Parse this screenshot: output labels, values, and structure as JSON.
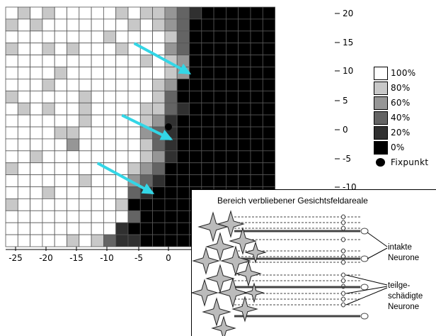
{
  "chart_data": {
    "type": "heatmap",
    "x_ticks": [
      "-25",
      "-20",
      "-15",
      "-10",
      "-5",
      "0"
    ],
    "y_ticks": [
      "20",
      "15",
      "10",
      "5",
      "0",
      "-5",
      "-10"
    ],
    "x_range": [
      -27,
      4
    ],
    "y_range": [
      -20,
      21
    ],
    "cell_size_deg": 2,
    "levels": [
      "100%",
      "80%",
      "60%",
      "40%",
      "20%",
      "0%"
    ],
    "level_colors": [
      "#ffffff",
      "#c8c8c8",
      "#969696",
      "#646464",
      "#303030",
      "#000000"
    ],
    "rows_note": "values are sensitivity level indices 0=100% .. 5=0%, top row first; x from -27 to 13 in 2° columns",
    "grid": [
      "0101000001011234555555",
      "1010000000101235555555",
      "0000000010000135555555",
      "1001010001000235555555",
      "0000000000010125555555",
      "0000100000000125555555",
      "0001000000001255555555",
      "1000001000001355555555",
      "0101001000011345555555",
      "0000001000012455555555",
      "0000110000023455555555",
      "0000020000013455555555",
      "0010000000012455555555",
      "1000000000123555555555",
      "0000001000234555555555",
      "0001000000345555555555",
      "1000000001555555555555",
      "0000000000355555555555",
      "0000000004555555555555",
      "0000010134455555555555"
    ],
    "fixation": {
      "x": 0,
      "y": 0,
      "label": "Fixpunkt"
    },
    "arrows": [
      {
        "from": [
          -6,
          14
        ],
        "to": [
          3,
          9
        ]
      },
      {
        "from": [
          -8,
          2
        ],
        "to": [
          0,
          -2
        ]
      },
      {
        "from": [
          -12,
          -6
        ],
        "to": [
          -3,
          -11
        ]
      }
    ]
  },
  "legend": {
    "items": [
      {
        "label": "100%",
        "color": "#ffffff"
      },
      {
        "label": "80%",
        "color": "#c8c8c8"
      },
      {
        "label": "60%",
        "color": "#969696"
      },
      {
        "label": "40%",
        "color": "#646464"
      },
      {
        "label": "20%",
        "color": "#303030"
      },
      {
        "label": "0%",
        "color": "#000000"
      }
    ],
    "marker_label": "Fixpunkt"
  },
  "inset": {
    "title": "Bereich verbliebener Gesichtsfeldareale",
    "label_intact": [
      "intakte",
      "Neurone"
    ],
    "label_damaged": [
      "teilge-",
      "schädigte",
      "Neurone"
    ]
  },
  "colors": {
    "arrow": "#33d6e6"
  }
}
